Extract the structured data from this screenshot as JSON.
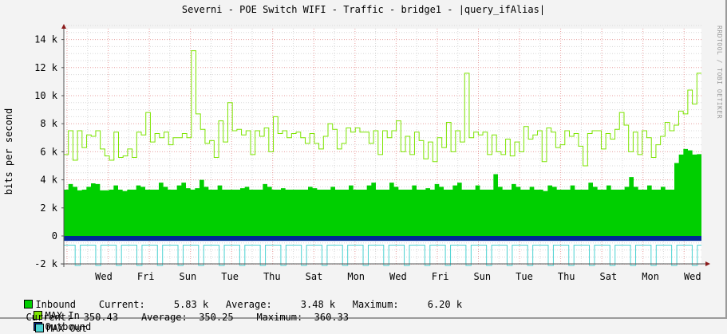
{
  "title": "Severni - POE Switch WIFI - Traffic - bridge1 - |query_ifAlias|",
  "watermark": "RRDTOOL / TOBI OETIKER",
  "y_axis_label": "bits per second",
  "legend": {
    "row1": [
      {
        "name": "Inbound",
        "color": "#00CF00",
        "text": "Inbound    Current:     5.83 k   Average:     3.48 k   Maximum:     6.20 k"
      },
      {
        "name": "MAX In",
        "color": "#7CE400",
        "text": "MAX In"
      },
      {
        "name": "Outbound",
        "color": "#002A97",
        "text": "Outbound"
      }
    ],
    "row2": [
      {
        "text": "Current:  350.43    Average:  350.25    Maximum:  360.33"
      },
      {
        "name": "MAX Out",
        "color": "#4CD2D2",
        "text": "MAX Out"
      }
    ]
  },
  "chart_data": {
    "type": "area",
    "title": "Severni - POE Switch WIFI - Traffic - bridge1 - |query_ifAlias|",
    "xlabel": "",
    "ylabel": "bits per second",
    "ylim": [
      -2000,
      15000
    ],
    "yticks": [
      -2000,
      0,
      2000,
      4000,
      6000,
      8000,
      10000,
      12000,
      14000
    ],
    "ytick_labels": [
      "-2 k",
      "0",
      "2 k",
      "4 k",
      "6 k",
      "8 k",
      "10 k",
      "12 k",
      "14 k"
    ],
    "xtick_labels": [
      "Wed",
      "Fri",
      "Sun",
      "Tue",
      "Thu",
      "Sat",
      "Mon",
      "Wed",
      "Fri",
      "Sun",
      "Tue",
      "Thu",
      "Sat",
      "Mon",
      "Wed"
    ],
    "grid": true,
    "legend_position": "bottom",
    "series": [
      {
        "name": "Inbound",
        "style": "area",
        "color": "#00CF00",
        "stats": {
          "current": "5.83 k",
          "average": "3.48 k",
          "maximum": "6.20 k"
        },
        "values": [
          3300,
          3700,
          3500,
          3250,
          3300,
          3500,
          3750,
          3700,
          3250,
          3250,
          3300,
          3600,
          3300,
          3200,
          3300,
          3300,
          3600,
          3500,
          3300,
          3300,
          3300,
          3800,
          3500,
          3300,
          3300,
          3600,
          3800,
          3400,
          3300,
          3400,
          4000,
          3500,
          3300,
          3300,
          3600,
          3300,
          3300,
          3300,
          3300,
          3400,
          3500,
          3300,
          3300,
          3300,
          3700,
          3500,
          3300,
          3300,
          3400,
          3300,
          3300,
          3300,
          3300,
          3300,
          3500,
          3400,
          3300,
          3300,
          3300,
          3500,
          3300,
          3300,
          3300,
          3600,
          3300,
          3300,
          3300,
          3600,
          3800,
          3300,
          3300,
          3300,
          3800,
          3500,
          3300,
          3300,
          3300,
          3600,
          3300,
          3300,
          3400,
          3300,
          3700,
          3500,
          3300,
          3300,
          3600,
          3800,
          3300,
          3300,
          3300,
          3600,
          3300,
          3300,
          3300,
          4400,
          3500,
          3300,
          3300,
          3700,
          3500,
          3300,
          3300,
          3500,
          3300,
          3300,
          3200,
          3600,
          3500,
          3300,
          3300,
          3300,
          3600,
          3300,
          3300,
          3300,
          3800,
          3500,
          3300,
          3300,
          3600,
          3300,
          3300,
          3300,
          3500,
          4200,
          3500,
          3300,
          3300,
          3600,
          3300,
          3300,
          3500,
          3300,
          3300,
          5200,
          5800,
          6200,
          6100,
          5800,
          5830
        ]
      },
      {
        "name": "MAX In",
        "style": "line",
        "color": "#7CE400",
        "values": [
          5800,
          7500,
          5400,
          7500,
          6300,
          7200,
          7100,
          7500,
          6200,
          5700,
          5400,
          7400,
          5600,
          5700,
          6200,
          5600,
          7400,
          7200,
          8800,
          6700,
          7300,
          7000,
          7400,
          6500,
          7000,
          7000,
          7300,
          7000,
          13200,
          8700,
          7600,
          6600,
          6800,
          5600,
          8200,
          6700,
          9500,
          7500,
          7600,
          7200,
          7500,
          5800,
          7500,
          7100,
          7700,
          6000,
          8500,
          7300,
          7500,
          7000,
          7300,
          7400,
          7000,
          6600,
          7300,
          6600,
          6200,
          7100,
          8000,
          7600,
          6200,
          6600,
          7700,
          7400,
          7700,
          7400,
          7400,
          6600,
          7500,
          5800,
          7500,
          7000,
          7500,
          8200,
          6000,
          7100,
          5800,
          7400,
          6800,
          5500,
          6700,
          5300,
          7000,
          6300,
          8100,
          6000,
          7500,
          6700,
          11600,
          7000,
          7400,
          7200,
          7400,
          5800,
          7200,
          6000,
          5800,
          6900,
          5700,
          6700,
          6000,
          7800,
          6900,
          7200,
          7500,
          5300,
          7700,
          7400,
          6300,
          6500,
          7500,
          7100,
          7300,
          6400,
          5000,
          7300,
          7500,
          7500,
          6200,
          7300,
          6900,
          7600,
          8800,
          7900,
          6000,
          7400,
          5800,
          7500,
          7000,
          5600,
          6500,
          7100,
          8100,
          7500,
          7900,
          8900,
          8700,
          10400,
          9400,
          11600
        ]
      },
      {
        "name": "Outbound",
        "style": "area",
        "color": "#002A97",
        "stats": {
          "current": "350.43",
          "average": "350.25",
          "maximum": "360.33"
        },
        "values_note": "approximately constant ~350 bps, drawn negative",
        "values": [
          -350
        ]
      },
      {
        "name": "MAX Out",
        "style": "line",
        "color": "#4CD2D2",
        "values_note": "mostly ~-650, periodic drops to ~-2100 about every 12 hours",
        "values": [
          -650,
          -2100,
          -650,
          -800,
          -2100,
          -650,
          -2100,
          -650,
          -800,
          -2100,
          -650
        ]
      }
    ]
  }
}
